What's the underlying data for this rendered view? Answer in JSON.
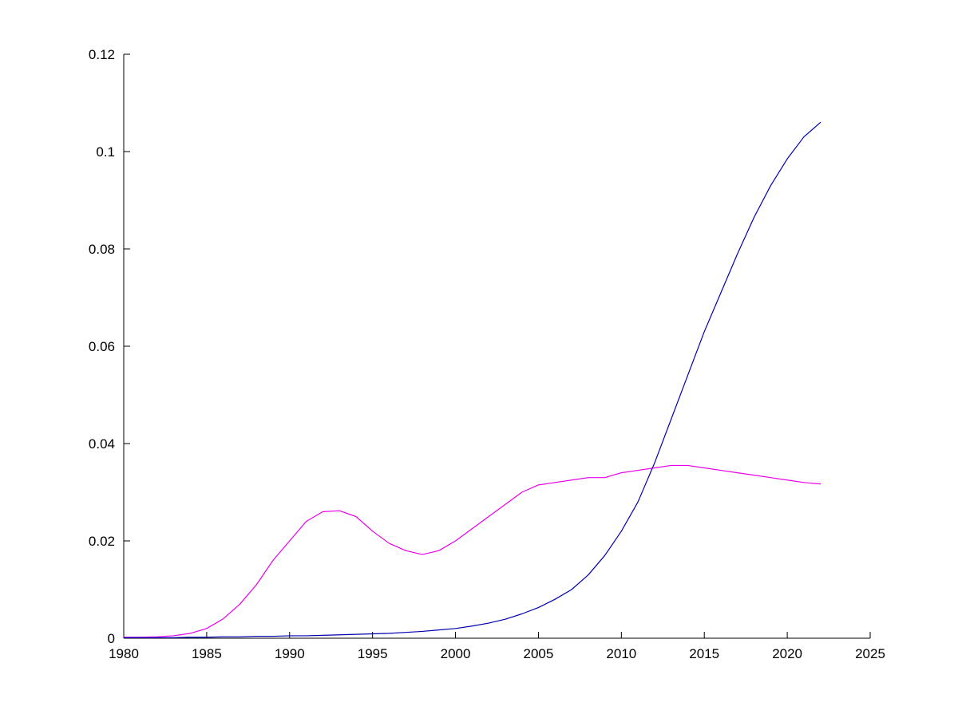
{
  "figure": {
    "background": "#ffffff",
    "axis_color": "#000000"
  },
  "chart_data": {
    "type": "line",
    "title": "",
    "xlabel": "",
    "ylabel": "",
    "grid": false,
    "legend": "none",
    "xlim": [
      1980,
      2025
    ],
    "ylim": [
      0,
      0.12
    ],
    "x_ticks": [
      1980,
      1985,
      1990,
      1995,
      2000,
      2005,
      2010,
      2015,
      2020,
      2025
    ],
    "x_tick_labels": [
      "1980",
      "1985",
      "1990",
      "1995",
      "2000",
      "2005",
      "2010",
      "2015",
      "2020",
      "2025"
    ],
    "y_ticks": [
      0,
      0.02,
      0.04,
      0.06,
      0.08,
      0.1,
      0.12
    ],
    "y_tick_labels": [
      "0",
      "0.02",
      "0.04",
      "0.06",
      "0.08",
      "0.1",
      "0.12"
    ],
    "x": [
      1980,
      1981,
      1982,
      1983,
      1984,
      1985,
      1986,
      1987,
      1988,
      1989,
      1990,
      1991,
      1992,
      1993,
      1994,
      1995,
      1996,
      1997,
      1998,
      1999,
      2000,
      2001,
      2002,
      2003,
      2004,
      2005,
      2006,
      2007,
      2008,
      2009,
      2010,
      2011,
      2012,
      2013,
      2014,
      2015,
      2016,
      2017,
      2018,
      2019,
      2020,
      2021,
      2022
    ],
    "series": [
      {
        "name": "magenta",
        "color": "#e800e8",
        "values": [
          0.0002,
          0.0002,
          0.0003,
          0.0005,
          0.001,
          0.002,
          0.004,
          0.007,
          0.011,
          0.016,
          0.02,
          0.024,
          0.026,
          0.0262,
          0.025,
          0.022,
          0.0195,
          0.018,
          0.0172,
          0.018,
          0.02,
          0.0225,
          0.025,
          0.0275,
          0.03,
          0.0315,
          0.032,
          0.0325,
          0.033,
          0.033,
          0.034,
          0.0345,
          0.035,
          0.0355,
          0.0355,
          0.035,
          0.0345,
          0.034,
          0.0335,
          0.033,
          0.0325,
          0.032,
          0.0317
        ]
      },
      {
        "name": "blue",
        "color": "#0000b0",
        "values": [
          0.0001,
          0.0001,
          0.0001,
          0.0001,
          0.0002,
          0.0002,
          0.0003,
          0.0003,
          0.0004,
          0.0004,
          0.0005,
          0.0005,
          0.0006,
          0.0007,
          0.0008,
          0.0009,
          0.001,
          0.0012,
          0.0014,
          0.0017,
          0.002,
          0.0025,
          0.0031,
          0.0039,
          0.005,
          0.0063,
          0.008,
          0.01,
          0.013,
          0.017,
          0.022,
          0.028,
          0.036,
          0.045,
          0.054,
          0.063,
          0.071,
          0.079,
          0.0865,
          0.093,
          0.0985,
          0.103,
          0.106
        ]
      }
    ]
  }
}
